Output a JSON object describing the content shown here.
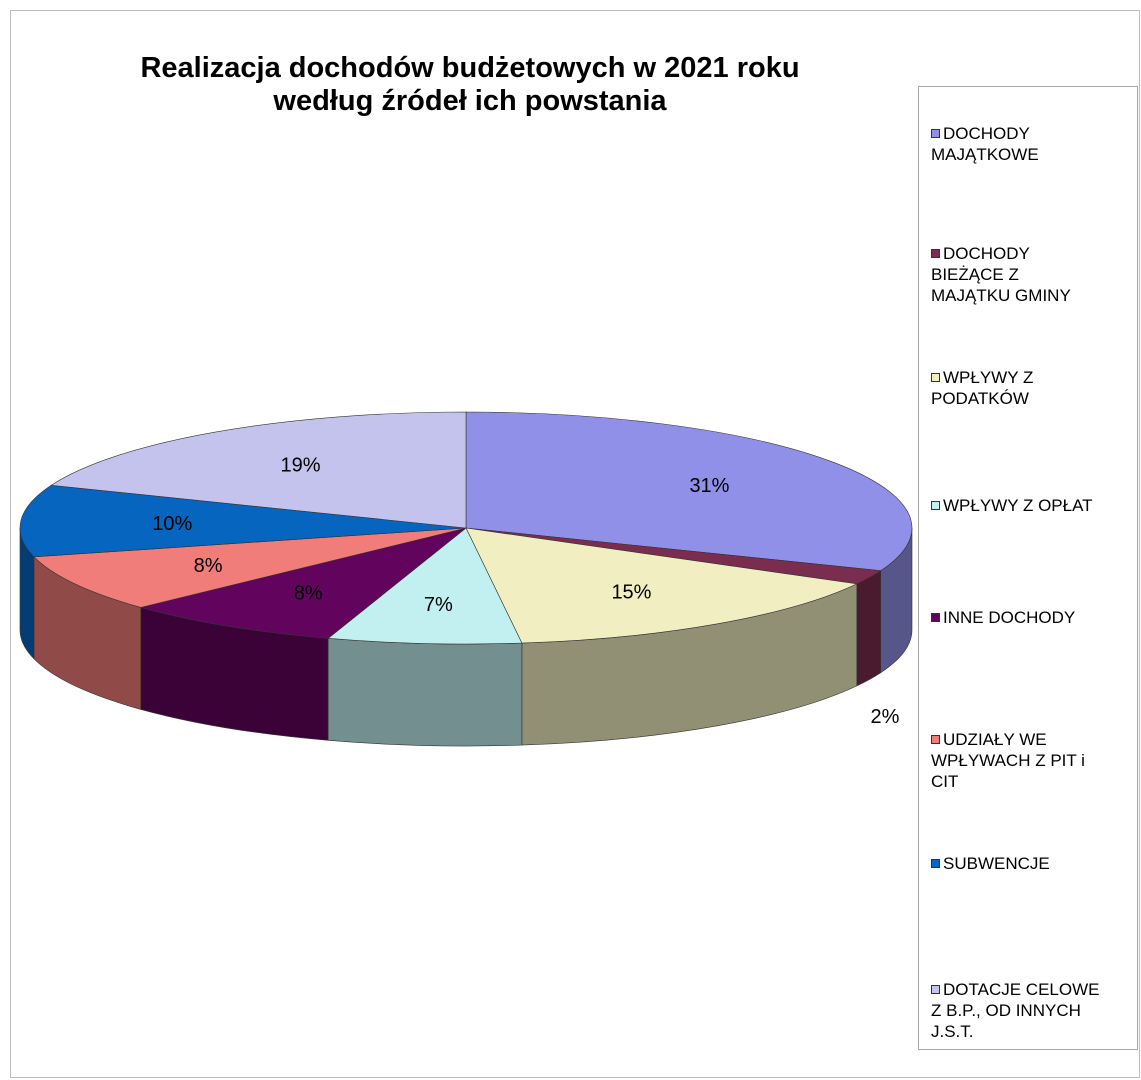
{
  "chart_data": {
    "type": "pie",
    "title": "Realizacja dochodów budżetowych w 2021 roku według źródeł ich powstania",
    "title_lines": [
      "Realizacja dochodów budżetowych w 2021 roku",
      "według źródeł ich powstania"
    ],
    "legend_position": "right",
    "slices": [
      {
        "name": "DOCHODY MAJĄTKOWE",
        "label_lines": [
          "DOCHODY",
          "MAJĄTKOWE"
        ],
        "value": 31,
        "value_label": "31%",
        "color": "#9190e8"
      },
      {
        "name": "DOCHODY BIEŻĄCE Z MAJĄTKU GMINY",
        "label_lines": [
          "DOCHODY",
          "BIEŻĄCE Z",
          "MAJĄTKU GMINY"
        ],
        "value": 2,
        "value_label": "2%",
        "color": "#7b2d4f"
      },
      {
        "name": "WPŁYWY Z PODATKÓW",
        "label_lines": [
          "WPŁYWY Z",
          "PODATKÓW"
        ],
        "value": 15,
        "value_label": "15%",
        "color": "#f1efc2"
      },
      {
        "name": "WPŁYWY Z OPŁAT",
        "label_lines": [
          "WPŁYWY Z OPŁAT"
        ],
        "value": 7,
        "value_label": "7%",
        "color": "#c2efef"
      },
      {
        "name": "INNE DOCHODY",
        "label_lines": [
          "INNE DOCHODY"
        ],
        "value": 8,
        "value_label": "8%",
        "color": "#62035e"
      },
      {
        "name": "UDZIAŁY WE WPŁYWACH Z PIT i CIT",
        "label_lines": [
          "UDZIAŁY WE",
          "WPŁYWACH Z PIT i",
          "CIT"
        ],
        "value": 8,
        "value_label": "8%",
        "color": "#f07d79"
      },
      {
        "name": "SUBWENCJE",
        "label_lines": [
          "SUBWENCJE"
        ],
        "value": 10,
        "value_label": "10%",
        "color": "#0565bf"
      },
      {
        "name": "DOTACJE CELOWE Z B.P., OD INNYCH J.S.T.",
        "label_lines": [
          "DOTACJE CELOWE",
          "Z B.P., OD INNYCH",
          "J.S.T."
        ],
        "value": 19,
        "value_label": "19%",
        "color": "#c4c3ee"
      }
    ]
  }
}
